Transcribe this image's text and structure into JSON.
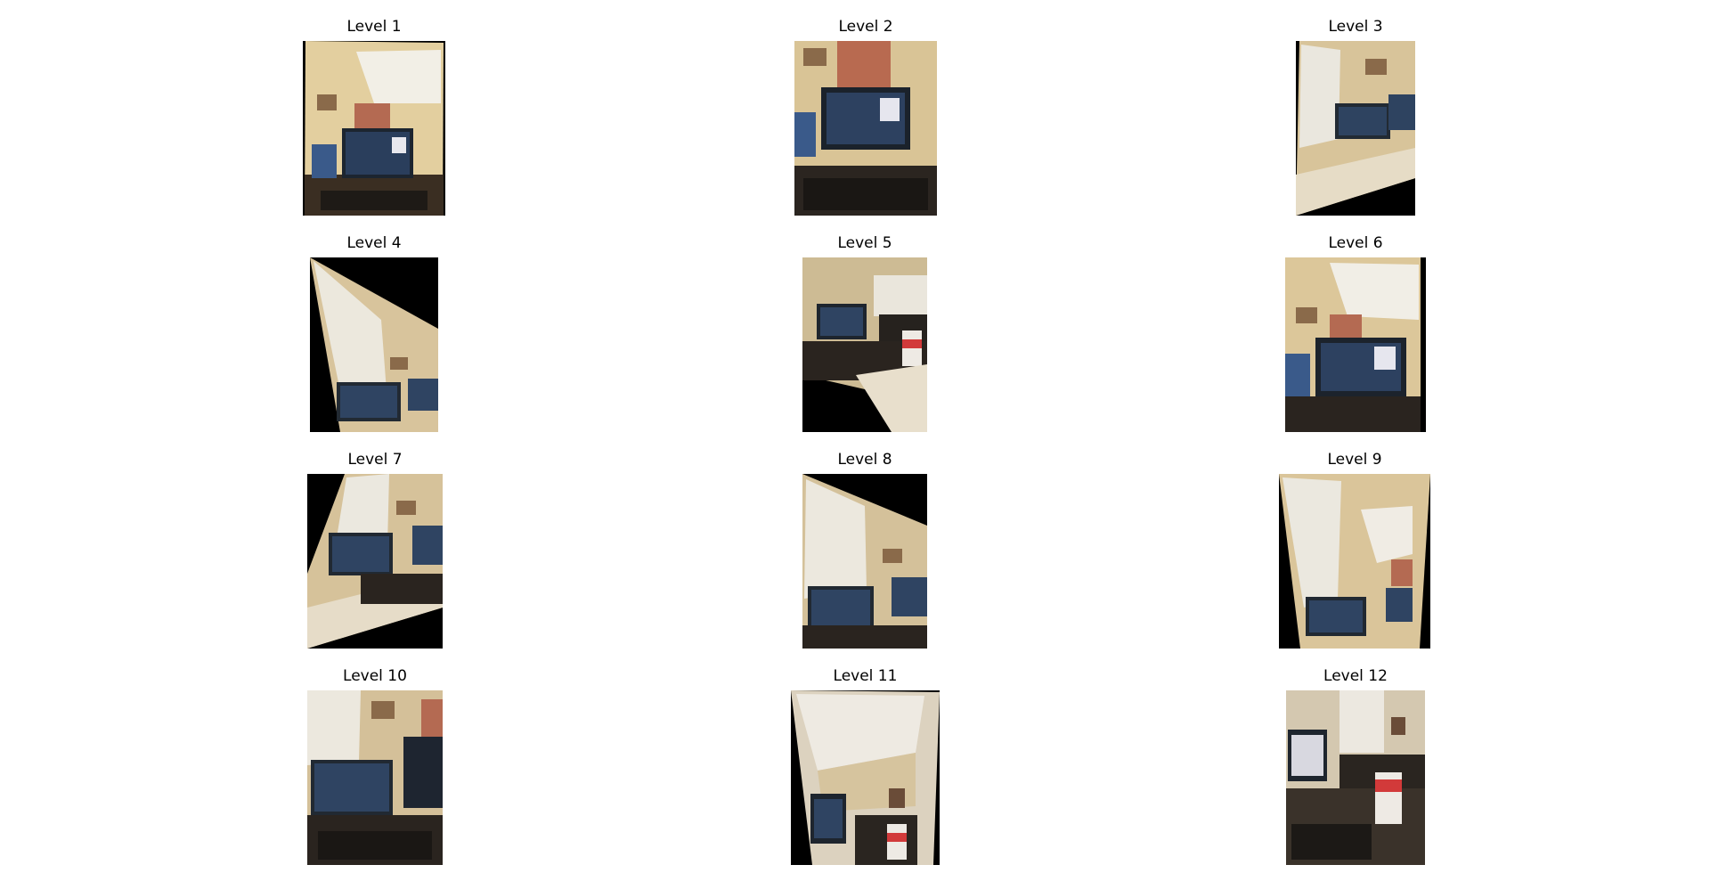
{
  "figure": {
    "panels": [
      {
        "title": "Level 1",
        "scene": "laptop-desk-front"
      },
      {
        "title": "Level 2",
        "scene": "laptop-desk-front"
      },
      {
        "title": "Level 3",
        "scene": "window-blinds-desk"
      },
      {
        "title": "Level 4",
        "scene": "window-blinds-desk"
      },
      {
        "title": "Level 5",
        "scene": "laptop-desk-bottle"
      },
      {
        "title": "Level 6",
        "scene": "laptop-desk-front"
      },
      {
        "title": "Level 7",
        "scene": "window-blinds-desk"
      },
      {
        "title": "Level 8",
        "scene": "window-blinds-desk"
      },
      {
        "title": "Level 9",
        "scene": "window-blinds-desk"
      },
      {
        "title": "Level 10",
        "scene": "window-blinds-desk"
      },
      {
        "title": "Level 11",
        "scene": "ceiling-corner-bottle"
      },
      {
        "title": "Level 12",
        "scene": "laptop-desk-bottle"
      }
    ]
  }
}
